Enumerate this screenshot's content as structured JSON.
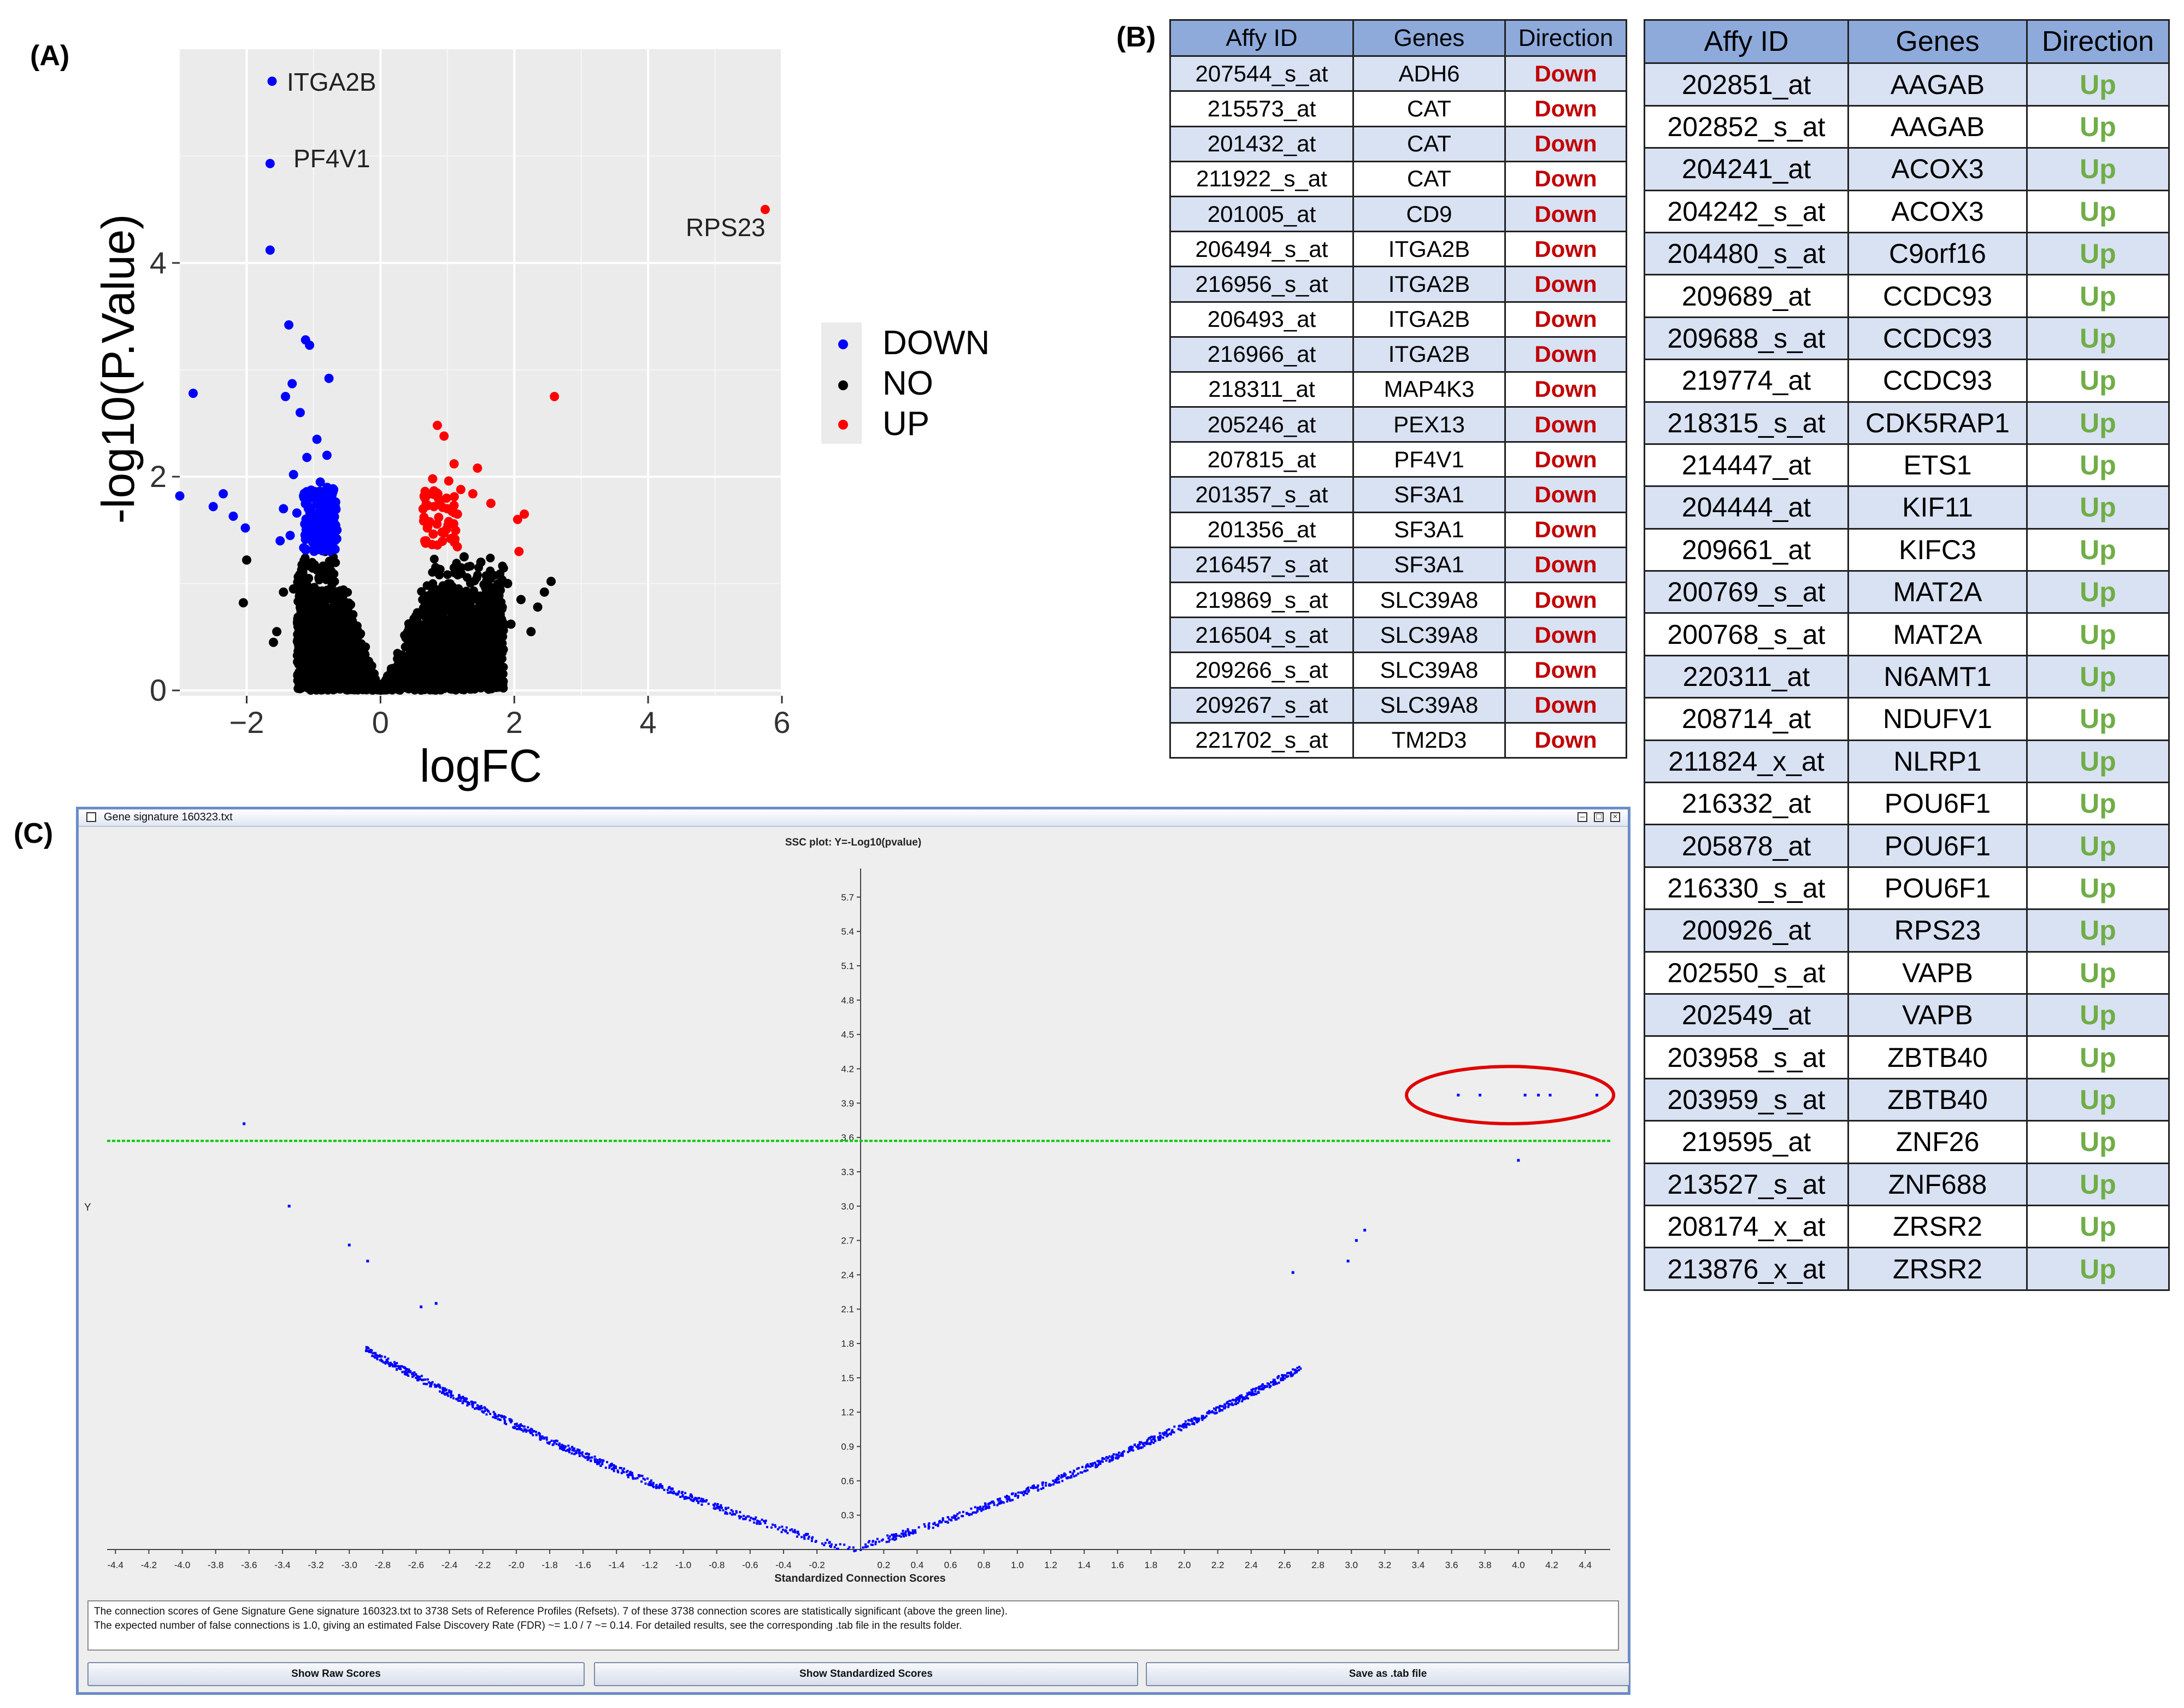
{
  "panel_labels": {
    "a": "(A)",
    "b": "(B)",
    "c": "(C)"
  },
  "chart_data": [
    {
      "type": "scatter",
      "title": "",
      "xlabel": "logFC",
      "ylabel": "-log10(P.Value)",
      "xlim": [
        -3.0,
        6.0
      ],
      "ylim": [
        -0.05,
        6.0
      ],
      "xticks": [
        -2,
        0,
        2,
        4,
        6
      ],
      "yticks": [
        0,
        2,
        4
      ],
      "grid": true,
      "legend": {
        "position": "right",
        "entries": [
          {
            "name": "DOWN",
            "color": "#0000ff"
          },
          {
            "name": "NO",
            "color": "#000000"
          },
          {
            "name": "UP",
            "color": "#ff0000"
          }
        ]
      },
      "annotations": [
        {
          "text": "ITGA2B",
          "x": -1.62,
          "y": 5.7
        },
        {
          "text": "PF4V1",
          "x": -1.62,
          "y": 4.93
        },
        {
          "text": "RPS23",
          "x": 5.75,
          "y": 4.5
        }
      ],
      "series": [
        {
          "name": "DOWN",
          "color": "#0000ff",
          "points": [
            [
              -1.62,
              5.7
            ],
            [
              -1.65,
              4.93
            ],
            [
              -1.65,
              4.12
            ],
            [
              -1.37,
              3.42
            ],
            [
              -1.12,
              3.28
            ],
            [
              -1.06,
              3.23
            ],
            [
              -1.32,
              2.87
            ],
            [
              -0.77,
              2.92
            ],
            [
              -1.42,
              2.75
            ],
            [
              -2.8,
              2.78
            ],
            [
              -1.2,
              2.6
            ],
            [
              -0.95,
              2.35
            ],
            [
              -1.1,
              2.18
            ],
            [
              -0.8,
              2.2
            ],
            [
              -1.3,
              2.02
            ],
            [
              -3.0,
              1.82
            ],
            [
              -2.5,
              1.72
            ],
            [
              -2.35,
              1.84
            ],
            [
              -2.2,
              1.63
            ],
            [
              -2.02,
              1.52
            ],
            [
              -1.45,
              1.7
            ],
            [
              -1.25,
              1.66
            ],
            [
              -1.35,
              1.45
            ],
            [
              -1.5,
              1.4
            ],
            [
              -0.9,
              1.95
            ],
            [
              -0.7,
              1.88
            ],
            [
              -0.75,
              1.62
            ],
            [
              -1.05,
              1.52
            ],
            [
              -0.85,
              1.45
            ],
            [
              -0.65,
              1.5
            ],
            [
              -1.15,
              1.82
            ],
            [
              -0.95,
              1.75
            ],
            [
              -0.72,
              1.72
            ],
            [
              -1.0,
              1.32
            ],
            [
              -0.88,
              1.35
            ]
          ]
        },
        {
          "name": "UP",
          "color": "#ff0000",
          "points": [
            [
              5.75,
              4.5
            ],
            [
              2.6,
              2.75
            ],
            [
              0.85,
              2.48
            ],
            [
              0.95,
              2.38
            ],
            [
              1.45,
              2.08
            ],
            [
              1.1,
              2.12
            ],
            [
              0.78,
              1.98
            ],
            [
              1.02,
              1.96
            ],
            [
              1.2,
              1.88
            ],
            [
              1.65,
              1.75
            ],
            [
              2.15,
              1.65
            ],
            [
              2.05,
              1.6
            ],
            [
              1.38,
              1.84
            ],
            [
              0.8,
              1.72
            ],
            [
              0.65,
              1.62
            ],
            [
              1.0,
              1.7
            ],
            [
              1.15,
              1.65
            ],
            [
              0.7,
              1.52
            ],
            [
              0.92,
              1.48
            ],
            [
              1.05,
              1.42
            ],
            [
              0.68,
              1.4
            ],
            [
              0.85,
              1.36
            ],
            [
              2.07,
              1.3
            ],
            [
              1.02,
              1.58
            ]
          ]
        },
        {
          "name": "NO",
          "color": "#000000",
          "points": [
            [
              -2.0,
              1.22
            ],
            [
              -2.05,
              0.82
            ],
            [
              -1.55,
              0.55
            ],
            [
              -1.6,
              0.45
            ],
            [
              -1.3,
              0.95
            ],
            [
              -1.45,
              0.92
            ],
            [
              2.55,
              1.02
            ],
            [
              2.45,
              0.92
            ],
            [
              2.25,
              0.55
            ],
            [
              1.95,
              0.62
            ],
            [
              1.8,
              0.48
            ],
            [
              1.7,
              0.3
            ],
            [
              1.5,
              1.2
            ],
            [
              1.25,
              1.25
            ],
            [
              2.35,
              0.78
            ],
            [
              -1.2,
              0.5
            ],
            [
              -1.1,
              0.68
            ],
            [
              -0.95,
              0.25
            ],
            [
              -0.7,
              0.42
            ],
            [
              1.05,
              0.35
            ],
            [
              0.95,
              0.78
            ],
            [
              1.3,
              0.58
            ],
            [
              1.55,
              0.85
            ],
            [
              1.9,
              1.0
            ],
            [
              2.1,
              0.85
            ]
          ]
        }
      ]
    },
    {
      "type": "scatter",
      "title": "SSC plot: Y=-Log10(pvalue)",
      "xlabel": "Standardized Connection Scores",
      "ylabel": "Y",
      "xlim": [
        -4.45,
        4.55
      ],
      "ylim": [
        0.0,
        5.95
      ],
      "xticks": [
        -4.4,
        -4.2,
        -4.0,
        -3.8,
        -3.6,
        -3.4,
        -3.2,
        -3.0,
        -2.8,
        -2.6,
        -2.4,
        -2.2,
        -2.0,
        -1.8,
        -1.6,
        -1.4,
        -1.2,
        -1.0,
        -0.8,
        -0.6,
        -0.4,
        -0.2,
        0.2,
        0.4,
        0.6,
        0.8,
        1.0,
        1.2,
        1.4,
        1.6,
        1.8,
        2.0,
        2.2,
        2.4,
        2.6,
        2.8,
        3.0,
        3.2,
        3.4,
        3.6,
        3.8,
        4.0,
        4.2,
        4.4
      ],
      "xtick_labels": [
        "-4.4",
        "-4.2",
        "-4.0",
        "-3.8",
        "-3.6",
        "-3.4",
        "-3.2",
        "-3.0",
        "-2.8",
        "-2.6",
        "-2.4",
        "-2.2",
        "-2.0",
        "-1.8",
        "-1.6",
        "-1.4",
        "-1.2",
        "-1.0",
        "-0.8",
        "-0.6",
        "-0.4",
        "-0.2",
        "0.2",
        "0.4",
        "0.6",
        "0.8",
        "1.0",
        "1.2",
        "1.4",
        "1.6",
        "1.8",
        "2.0",
        "2.2",
        "2.4",
        "2.6",
        "2.8",
        "3.0",
        "3.2",
        "3.4",
        "3.6",
        "3.8",
        "4.0",
        "4.2",
        "4.4"
      ],
      "yticks": [
        0.3,
        0.6,
        0.9,
        1.2,
        1.5,
        1.8,
        2.1,
        2.4,
        2.7,
        3.0,
        3.3,
        3.6,
        3.9,
        4.2,
        4.5,
        4.8,
        5.1,
        5.4,
        5.7
      ],
      "ytick_labels": [
        "0.3",
        "0.6",
        "0.9",
        "1.2",
        "1.5",
        "1.8",
        "2.1",
        "2.4",
        "2.7",
        "3.0",
        "3.3",
        "3.6",
        "3.9",
        "4.2",
        "4.5",
        "4.8",
        "5.1",
        "5.4",
        "5.7"
      ],
      "threshold_line": {
        "y": 3.57,
        "color": "#00cc00"
      },
      "highlight_ellipse": {
        "cx": 3.95,
        "cy": 3.97,
        "rx": 0.62,
        "ry": 0.25,
        "color": "#e00000"
      },
      "series": [
        {
          "name": "",
          "color": "#0000ff",
          "curve_note": "V-shaped cloud of 3738 scores",
          "isolated_points": [
            [
              -3.63,
              3.72
            ],
            [
              -3.36,
              3.0
            ],
            [
              -3.0,
              2.66
            ],
            [
              -2.89,
              2.52
            ],
            [
              -2.57,
              2.12
            ],
            [
              -2.48,
              2.15
            ],
            [
              3.08,
              2.79
            ],
            [
              3.03,
              2.7
            ],
            [
              2.98,
              2.52
            ],
            [
              2.65,
              2.42
            ],
            [
              3.64,
              3.97
            ],
            [
              3.77,
              3.97
            ],
            [
              4.04,
              3.97
            ],
            [
              4.12,
              3.97
            ],
            [
              4.19,
              3.97
            ],
            [
              4.47,
              3.97
            ],
            [
              4.0,
              3.4
            ]
          ]
        }
      ]
    }
  ],
  "table_down": {
    "headers": [
      "Affy ID",
      "Genes",
      "Direction"
    ],
    "rows": [
      [
        "207544_s_at",
        "ADH6",
        "Down"
      ],
      [
        "215573_at",
        "CAT",
        "Down"
      ],
      [
        "201432_at",
        "CAT",
        "Down"
      ],
      [
        "211922_s_at",
        "CAT",
        "Down"
      ],
      [
        "201005_at",
        "CD9",
        "Down"
      ],
      [
        "206494_s_at",
        "ITGA2B",
        "Down"
      ],
      [
        "216956_s_at",
        "ITGA2B",
        "Down"
      ],
      [
        "206493_at",
        "ITGA2B",
        "Down"
      ],
      [
        "216966_at",
        "ITGA2B",
        "Down"
      ],
      [
        "218311_at",
        "MAP4K3",
        "Down"
      ],
      [
        "205246_at",
        "PEX13",
        "Down"
      ],
      [
        "207815_at",
        "PF4V1",
        "Down"
      ],
      [
        "201357_s_at",
        "SF3A1",
        "Down"
      ],
      [
        "201356_at",
        "SF3A1",
        "Down"
      ],
      [
        "216457_s_at",
        "SF3A1",
        "Down"
      ],
      [
        "219869_s_at",
        "SLC39A8",
        "Down"
      ],
      [
        "216504_s_at",
        "SLC39A8",
        "Down"
      ],
      [
        "209266_s_at",
        "SLC39A8",
        "Down"
      ],
      [
        "209267_s_at",
        "SLC39A8",
        "Down"
      ],
      [
        "221702_s_at",
        "TM2D3",
        "Down"
      ]
    ]
  },
  "table_up": {
    "headers": [
      "Affy ID",
      "Genes",
      "Direction"
    ],
    "rows": [
      [
        "202851_at",
        "AAGAB",
        "Up"
      ],
      [
        "202852_s_at",
        "AAGAB",
        "Up"
      ],
      [
        "204241_at",
        "ACOX3",
        "Up"
      ],
      [
        "204242_s_at",
        "ACOX3",
        "Up"
      ],
      [
        "204480_s_at",
        "C9orf16",
        "Up"
      ],
      [
        "209689_at",
        "CCDC93",
        "Up"
      ],
      [
        "209688_s_at",
        "CCDC93",
        "Up"
      ],
      [
        "219774_at",
        "CCDC93",
        "Up"
      ],
      [
        "218315_s_at",
        "CDK5RAP1",
        "Up"
      ],
      [
        "214447_at",
        "ETS1",
        "Up"
      ],
      [
        "204444_at",
        "KIF11",
        "Up"
      ],
      [
        "209661_at",
        "KIFC3",
        "Up"
      ],
      [
        "200769_s_at",
        "MAT2A",
        "Up"
      ],
      [
        "200768_s_at",
        "MAT2A",
        "Up"
      ],
      [
        "220311_at",
        "N6AMT1",
        "Up"
      ],
      [
        "208714_at",
        "NDUFV1",
        "Up"
      ],
      [
        "211824_x_at",
        "NLRP1",
        "Up"
      ],
      [
        "216332_at",
        "POU6F1",
        "Up"
      ],
      [
        "205878_at",
        "POU6F1",
        "Up"
      ],
      [
        "216330_s_at",
        "POU6F1",
        "Up"
      ],
      [
        "200926_at",
        "RPS23",
        "Up"
      ],
      [
        "202550_s_at",
        "VAPB",
        "Up"
      ],
      [
        "202549_at",
        "VAPB",
        "Up"
      ],
      [
        "203958_s_at",
        "ZBTB40",
        "Up"
      ],
      [
        "203959_s_at",
        "ZBTB40",
        "Up"
      ],
      [
        "219595_at",
        "ZNF26",
        "Up"
      ],
      [
        "213527_s_at",
        "ZNF688",
        "Up"
      ],
      [
        "208174_x_at",
        "ZRSR2",
        "Up"
      ],
      [
        "213876_x_at",
        "ZRSR2",
        "Up"
      ]
    ]
  },
  "window": {
    "title": "Gene signature 160323.txt",
    "info_line1": "The connection scores of Gene Signature Gene signature 160323.txt to 3738 Sets of Reference Profiles (Refsets). 7 of these 3738 connection scores are statistically significant (above the green line).",
    "info_line2": "The expected number of false connections is 1.0, giving an estimated False Discovery Rate (FDR) ~= 1.0 / 7 ~= 0.14. For detailed results, see the corresponding .tab file in the results folder.",
    "btn_raw": "Show Raw Scores",
    "btn_std": "Show Standardized Scores",
    "btn_save": "Save as .tab file"
  }
}
